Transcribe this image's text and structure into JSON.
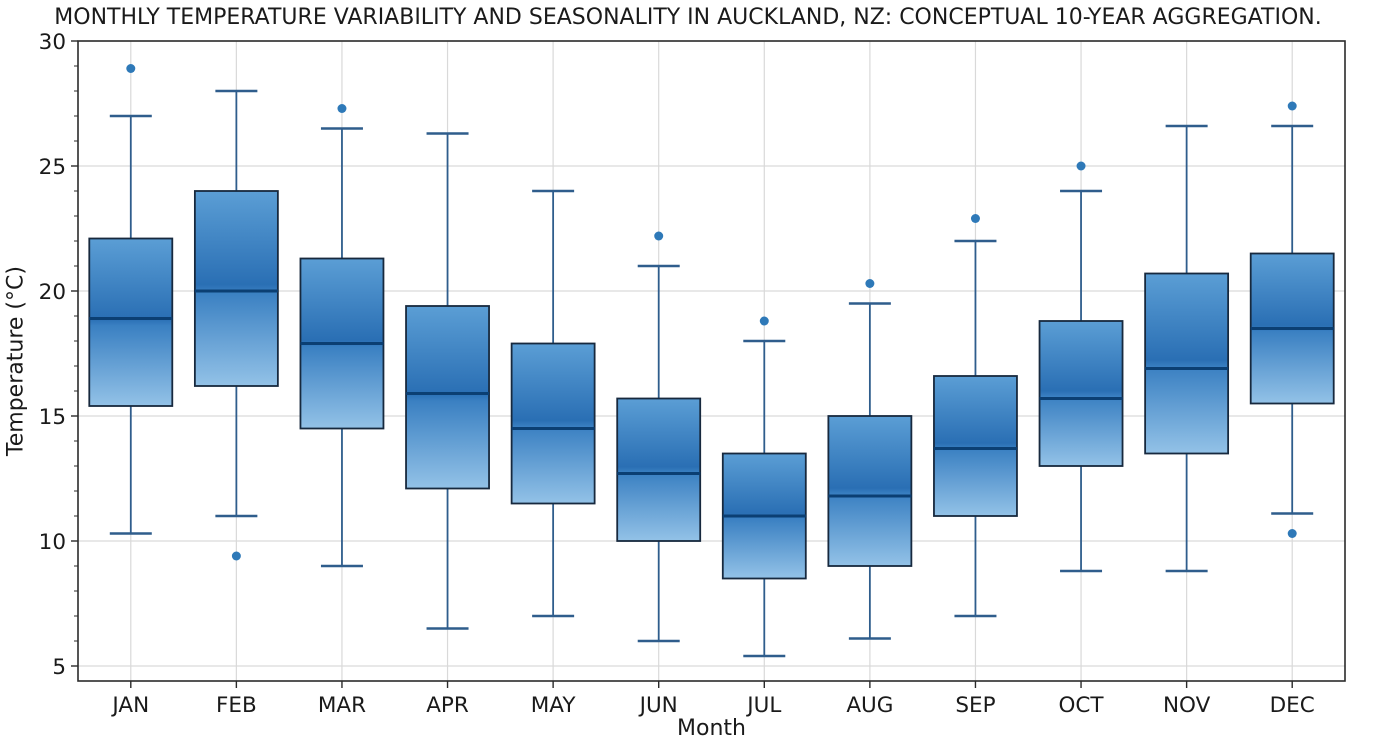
{
  "chart_data": {
    "type": "box",
    "title": "MONTHLY TEMPERATURE VARIABILITY AND SEASONALITY IN AUCKLAND, NZ: CONCEPTUAL 10-YEAR AGGREGATION.",
    "xlabel": "Month",
    "ylabel": "Temperature (°C)",
    "categories": [
      "JAN",
      "FEB",
      "MAR",
      "APR",
      "MAY",
      "JUN",
      "JUL",
      "AUG",
      "SEP",
      "OCT",
      "NOV",
      "DEC"
    ],
    "yticks": [
      5,
      10,
      15,
      20,
      25,
      30
    ],
    "ylim": [
      4.4,
      30
    ],
    "grid": true,
    "legend": null,
    "boxes": [
      {
        "month": "JAN",
        "whisker_low": 10.3,
        "q1": 15.4,
        "median": 18.9,
        "q3": 22.1,
        "whisker_high": 27.0,
        "outliers": [
          28.9
        ]
      },
      {
        "month": "FEB",
        "whisker_low": 11.0,
        "q1": 16.2,
        "median": 20.0,
        "q3": 24.0,
        "whisker_high": 28.0,
        "outliers": [
          9.4
        ]
      },
      {
        "month": "MAR",
        "whisker_low": 9.0,
        "q1": 14.5,
        "median": 17.9,
        "q3": 21.3,
        "whisker_high": 26.5,
        "outliers": [
          27.3
        ]
      },
      {
        "month": "APR",
        "whisker_low": 6.5,
        "q1": 12.1,
        "median": 15.9,
        "q3": 19.4,
        "whisker_high": 26.3,
        "outliers": []
      },
      {
        "month": "MAY",
        "whisker_low": 7.0,
        "q1": 11.5,
        "median": 14.5,
        "q3": 17.9,
        "whisker_high": 24.0,
        "outliers": []
      },
      {
        "month": "JUN",
        "whisker_low": 6.0,
        "q1": 10.0,
        "median": 12.7,
        "q3": 15.7,
        "whisker_high": 21.0,
        "outliers": [
          22.2
        ]
      },
      {
        "month": "JUL",
        "whisker_low": 5.4,
        "q1": 8.5,
        "median": 11.0,
        "q3": 13.5,
        "whisker_high": 18.0,
        "outliers": [
          18.8
        ]
      },
      {
        "month": "AUG",
        "whisker_low": 6.1,
        "q1": 9.0,
        "median": 11.8,
        "q3": 15.0,
        "whisker_high": 19.5,
        "outliers": [
          20.3
        ]
      },
      {
        "month": "SEP",
        "whisker_low": 7.0,
        "q1": 11.0,
        "median": 13.7,
        "q3": 16.6,
        "whisker_high": 22.0,
        "outliers": [
          22.9
        ]
      },
      {
        "month": "OCT",
        "whisker_low": 8.8,
        "q1": 13.0,
        "median": 15.7,
        "q3": 18.8,
        "whisker_high": 24.0,
        "outliers": [
          25.0
        ]
      },
      {
        "month": "NOV",
        "whisker_low": 8.8,
        "q1": 13.5,
        "median": 16.9,
        "q3": 20.7,
        "whisker_high": 26.6,
        "outliers": []
      },
      {
        "month": "DEC",
        "whisker_low": 11.1,
        "q1": 15.5,
        "median": 18.5,
        "q3": 21.5,
        "whisker_high": 26.6,
        "outliers": [
          27.4,
          10.3
        ]
      }
    ],
    "colors": {
      "box_gradient_top": "#5b9ed5",
      "box_gradient_upper_mid": "#2a6fb4",
      "box_gradient_lower_mid": "#3a80c2",
      "box_gradient_bottom": "#93c2e7",
      "box_border": "#17293e",
      "median_line": "#0b3f73",
      "whisker": "#2f5d8c",
      "outlier_dot": "#2e79b8",
      "gridline": "#d9d9d9",
      "spine": "#2b2b2b",
      "text": "#1a1a1a"
    }
  }
}
